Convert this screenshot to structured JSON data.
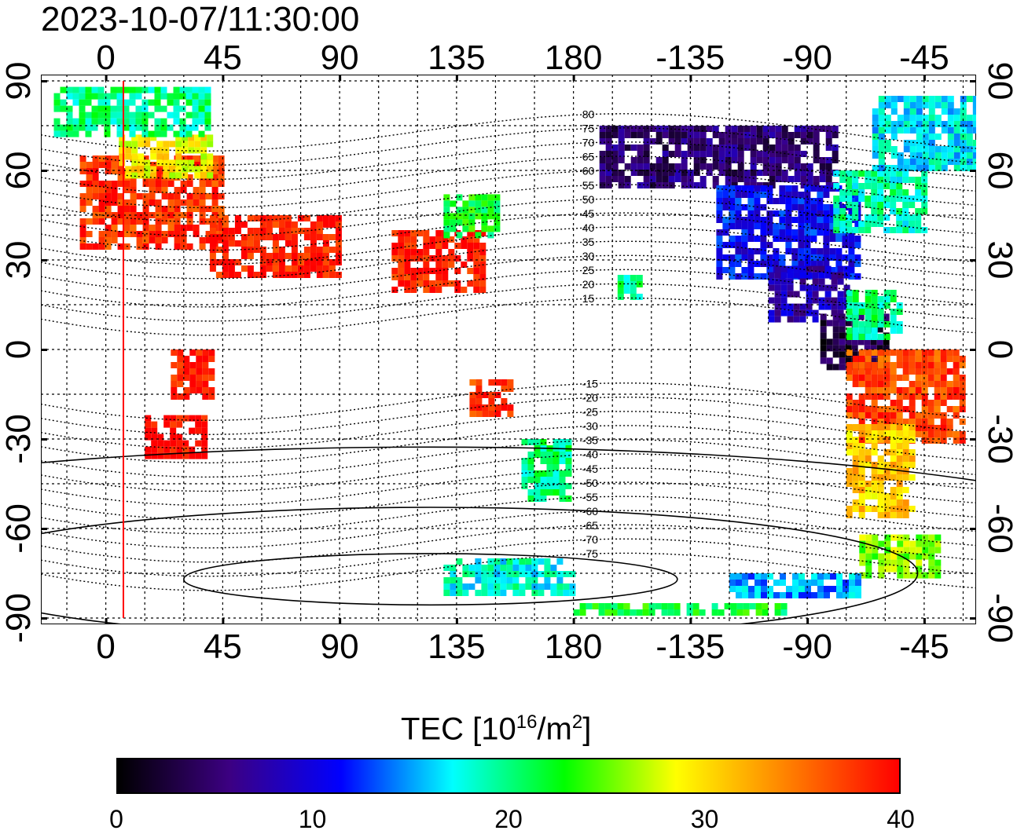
{
  "timestamp": "2023-10-07/11:30:00",
  "lon_ticks": [
    {
      "label": "0",
      "lon": 0
    },
    {
      "label": "45",
      "lon": 45
    },
    {
      "label": "90",
      "lon": 90
    },
    {
      "label": "135",
      "lon": 135
    },
    {
      "label": "180",
      "lon": 180
    },
    {
      "label": "-135",
      "lon": 225
    },
    {
      "label": "-90",
      "lon": 270
    },
    {
      "label": "-45",
      "lon": 315
    }
  ],
  "lat_ticks": [
    {
      "label": "90",
      "lat": 90
    },
    {
      "label": "60",
      "lat": 60
    },
    {
      "label": "30",
      "lat": 30
    },
    {
      "label": "0",
      "lat": 0
    },
    {
      "label": "-30",
      "lat": -30
    },
    {
      "label": "-60",
      "lat": -60
    },
    {
      "label": "-90",
      "lat": -90
    }
  ],
  "magnetic_latitude_contours": [
    "80",
    "75",
    "70",
    "65",
    "60",
    "55",
    "50",
    "45",
    "40",
    "35",
    "30",
    "25",
    "20",
    "15",
    "-15",
    "-20",
    "-25",
    "-30",
    "-35",
    "-40",
    "-45",
    "-50",
    "-55",
    "-60",
    "-65",
    "-70",
    "-75"
  ],
  "colorbar": {
    "title_main": "TEC  [10",
    "title_exp": "16",
    "title_unit": "/m",
    "title_exp2": "2",
    "title_close": "]",
    "ticks": [
      "0",
      "10",
      "20",
      "30",
      "40"
    ],
    "min": 0,
    "max": 40,
    "colors": [
      "#000000",
      "#3c0082",
      "#0000ff",
      "#00ffff",
      "#00ff00",
      "#ffff00",
      "#ff8000",
      "#ff0000"
    ]
  },
  "map": {
    "lon_range": [
      -25,
      335
    ],
    "lat_range": [
      -90,
      90
    ],
    "terminator_color": "#ff0000",
    "grid": true,
    "regions": [
      {
        "name": "europe",
        "lon": [
          -10,
          45
        ],
        "lat": [
          35,
          65
        ],
        "tec": 38
      },
      {
        "name": "scandinavia",
        "lon": [
          5,
          40
        ],
        "lat": [
          58,
          72
        ],
        "tec": 29
      },
      {
        "name": "arctic-atlantic",
        "lon": [
          -20,
          40
        ],
        "lat": [
          72,
          88
        ],
        "tec": 20
      },
      {
        "name": "middle-east",
        "lon": [
          40,
          90
        ],
        "lat": [
          25,
          45
        ],
        "tec": 39
      },
      {
        "name": "east-asia",
        "lon": [
          110,
          145
        ],
        "lat": [
          20,
          40
        ],
        "tec": 39
      },
      {
        "name": "japan-north",
        "lon": [
          130,
          150
        ],
        "lat": [
          38,
          52
        ],
        "tec": 22
      },
      {
        "name": "south-africa",
        "lon": [
          15,
          38
        ],
        "lat": [
          -35,
          -22
        ],
        "tec": 40
      },
      {
        "name": "central-africa",
        "lon": [
          25,
          40
        ],
        "lat": [
          -15,
          0
        ],
        "tec": 39
      },
      {
        "name": "australia-ne",
        "lon": [
          140,
          155
        ],
        "lat": [
          -22,
          -10
        ],
        "tec": 38
      },
      {
        "name": "new-zealand",
        "lon": [
          160,
          178
        ],
        "lat": [
          -50,
          -30
        ],
        "tec": 20
      },
      {
        "name": "antarctic-pacific",
        "lon": [
          130,
          180
        ],
        "lat": [
          -82,
          -70
        ],
        "tec": 18
      },
      {
        "name": "alaska-canada",
        "lon": [
          190,
          280
        ],
        "lat": [
          55,
          75
        ],
        "tec": 5
      },
      {
        "name": "north-america",
        "lon": [
          235,
          290
        ],
        "lat": [
          25,
          55
        ],
        "tec": 11
      },
      {
        "name": "canada-east",
        "lon": [
          280,
          315
        ],
        "lat": [
          40,
          60
        ],
        "tec": 19
      },
      {
        "name": "greenland",
        "lon": [
          295,
          335
        ],
        "lat": [
          60,
          85
        ],
        "tec": 17
      },
      {
        "name": "mexico",
        "lon": [
          255,
          285
        ],
        "lat": [
          10,
          28
        ],
        "tec": 8
      },
      {
        "name": "central-america",
        "lon": [
          275,
          300
        ],
        "lat": [
          -5,
          12
        ],
        "tec": 3
      },
      {
        "name": "caribbean",
        "lon": [
          285,
          305
        ],
        "lat": [
          5,
          20
        ],
        "tec": 20
      },
      {
        "name": "brazil",
        "lon": [
          285,
          330
        ],
        "lat": [
          -30,
          0
        ],
        "tec": 37
      },
      {
        "name": "argentina",
        "lon": [
          285,
          310
        ],
        "lat": [
          -55,
          -25
        ],
        "tec": 31
      },
      {
        "name": "hawaii",
        "lon": [
          197,
          205
        ],
        "lat": [
          18,
          25
        ],
        "tec": 20
      },
      {
        "name": "antarctic-peninsula",
        "lon": [
          290,
          320
        ],
        "lat": [
          -75,
          -62
        ],
        "tec": 26
      },
      {
        "name": "antarctic-america",
        "lon": [
          240,
          290
        ],
        "lat": [
          -82,
          -75
        ],
        "tec": 15
      },
      {
        "name": "antarctic-strip",
        "lon": [
          180,
          260
        ],
        "lat": [
          -88,
          -85
        ],
        "tec": 22
      }
    ]
  }
}
